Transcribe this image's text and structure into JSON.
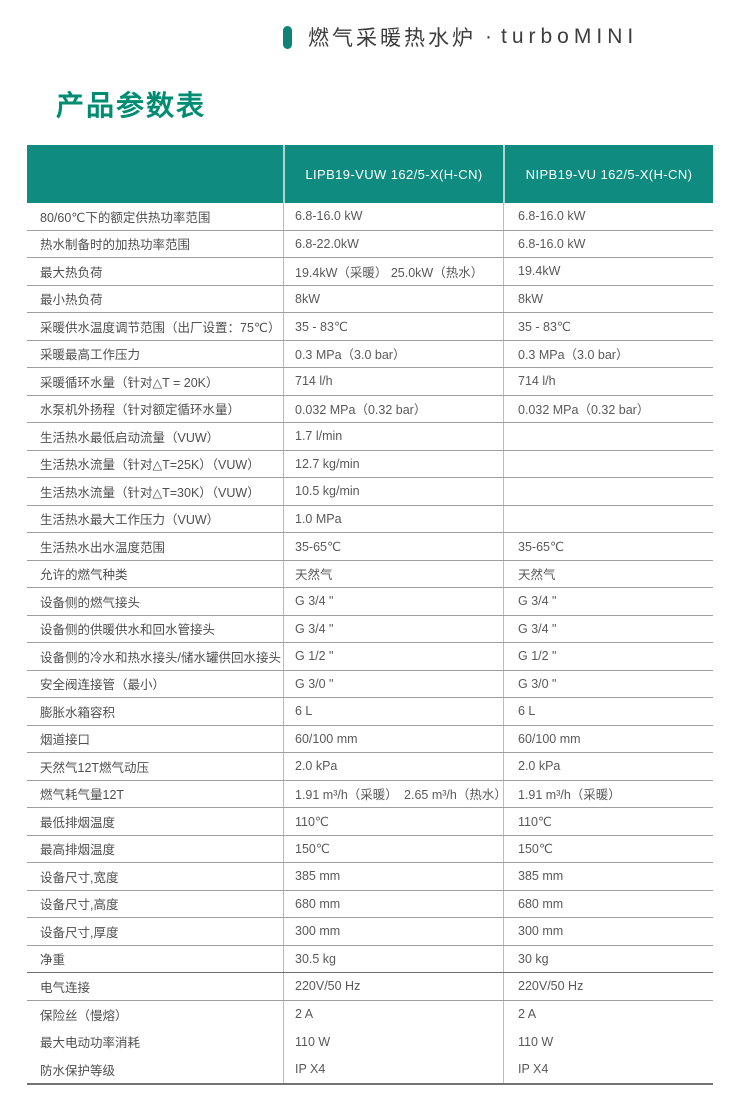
{
  "banner": {
    "product_zh": "燃气采暖热水炉",
    "separator": "·",
    "series": "turboMINI"
  },
  "page_title": "产品参数表",
  "colors": {
    "header_teal": "#0f8b80",
    "title_green": "#008c72",
    "pill_teal": "#0e8478"
  },
  "table": {
    "columns": [
      "",
      "LIPB19-VUW 162/5-X(H-CN)",
      "NIPB19-VU 162/5-X(H-CN)"
    ],
    "rows": [
      {
        "label": "80/60℃下的额定供热功率范围",
        "v1": "6.8-16.0 kW",
        "v2": "6.8-16.0 kW"
      },
      {
        "label": "热水制备时的加热功率范围",
        "v1": "6.8-22.0kW",
        "v2": "6.8-16.0 kW"
      },
      {
        "label": "最大热负荷",
        "v1": "19.4kW（采暖） 25.0kW（热水）",
        "v2": "19.4kW"
      },
      {
        "label": "最小热负荷",
        "v1": "8kW",
        "v2": "8kW"
      },
      {
        "label": "采暖供水温度调节范围（出厂设置：75℃）",
        "v1": "35 - 83℃",
        "v2": "35 - 83℃"
      },
      {
        "label": "采暖最高工作压力",
        "v1": "0.3 MPa（3.0 bar）",
        "v2": "0.3 MPa（3.0 bar）"
      },
      {
        "label": "采暖循环水量（针对△T = 20K）",
        "v1": "714 l/h",
        "v2": "714 l/h"
      },
      {
        "label": "水泵机外扬程（针对额定循环水量）",
        "v1": "0.032 MPa（0.32 bar）",
        "v2": "0.032 MPa（0.32 bar）"
      },
      {
        "label": "生活热水最低启动流量（VUW）",
        "v1": "1.7 l/min",
        "v2": ""
      },
      {
        "label": "生活热水流量（针对△T=25K）（VUW）",
        "v1": "12.7 kg/min",
        "v2": ""
      },
      {
        "label": "生活热水流量（针对△T=30K）（VUW）",
        "v1": "10.5 kg/min",
        "v2": ""
      },
      {
        "label": "生活热水最大工作压力（VUW）",
        "v1": "1.0 MPa",
        "v2": ""
      },
      {
        "label": "生活热水出水温度范围",
        "v1": "35-65℃",
        "v2": "35-65℃"
      },
      {
        "label": "允许的燃气种类",
        "v1": "天然气",
        "v2": "天然气"
      },
      {
        "label": "设备侧的燃气接头",
        "v1": "G 3/4 \"",
        "v2": "G 3/4 \""
      },
      {
        "label": "设备侧的供暖供水和回水管接头",
        "v1": "G 3/4 \"",
        "v2": "G 3/4 \""
      },
      {
        "label": "设备侧的冷水和热水接头/储水罐供回水接头",
        "v1": "G 1/2 \"",
        "v2": "G 1/2 \""
      },
      {
        "label": "安全阀连接管（最小）",
        "v1": "G 3/0 \"",
        "v2": "G 3/0 \""
      },
      {
        "label": "膨胀水箱容积",
        "v1": "6 L",
        "v2": "6 L"
      },
      {
        "label": "烟道接口",
        "v1": "60/100 mm",
        "v2": "60/100 mm"
      },
      {
        "label": "天然气12T燃气动压",
        "v1": "2.0 kPa",
        "v2": "2.0 kPa"
      },
      {
        "label": "燃气耗气量12T",
        "v1": "1.91 m³/h（采暖）　2.65 m³/h（热水）",
        "v2": "1.91 m³/h（采暖）"
      },
      {
        "label": "最低排烟温度",
        "v1": "110℃",
        "v2": "110℃"
      },
      {
        "label": "最高排烟温度",
        "v1": "150℃",
        "v2": "150℃"
      },
      {
        "label": "设备尺寸,宽度",
        "v1": "385 mm",
        "v2": "385 mm"
      },
      {
        "label": "设备尺寸,高度",
        "v1": "680 mm",
        "v2": "680 mm"
      },
      {
        "label": "设备尺寸,厚度",
        "v1": "300 mm",
        "v2": "300 mm"
      },
      {
        "label": "净重",
        "v1": "30.5 kg",
        "v2": "30 kg"
      },
      {
        "label": "电气连接",
        "v1": "220V/50 Hz",
        "v2": "220V/50 Hz"
      },
      {
        "label": "保险丝（慢熔）",
        "v1": "2 A",
        "v2": "2 A"
      },
      {
        "label": "最大电动功率消耗",
        "v1": "110 W",
        "v2": "110 W"
      },
      {
        "label": "防水保护等级",
        "v1": "IP X4",
        "v2": "IP X4"
      }
    ]
  }
}
